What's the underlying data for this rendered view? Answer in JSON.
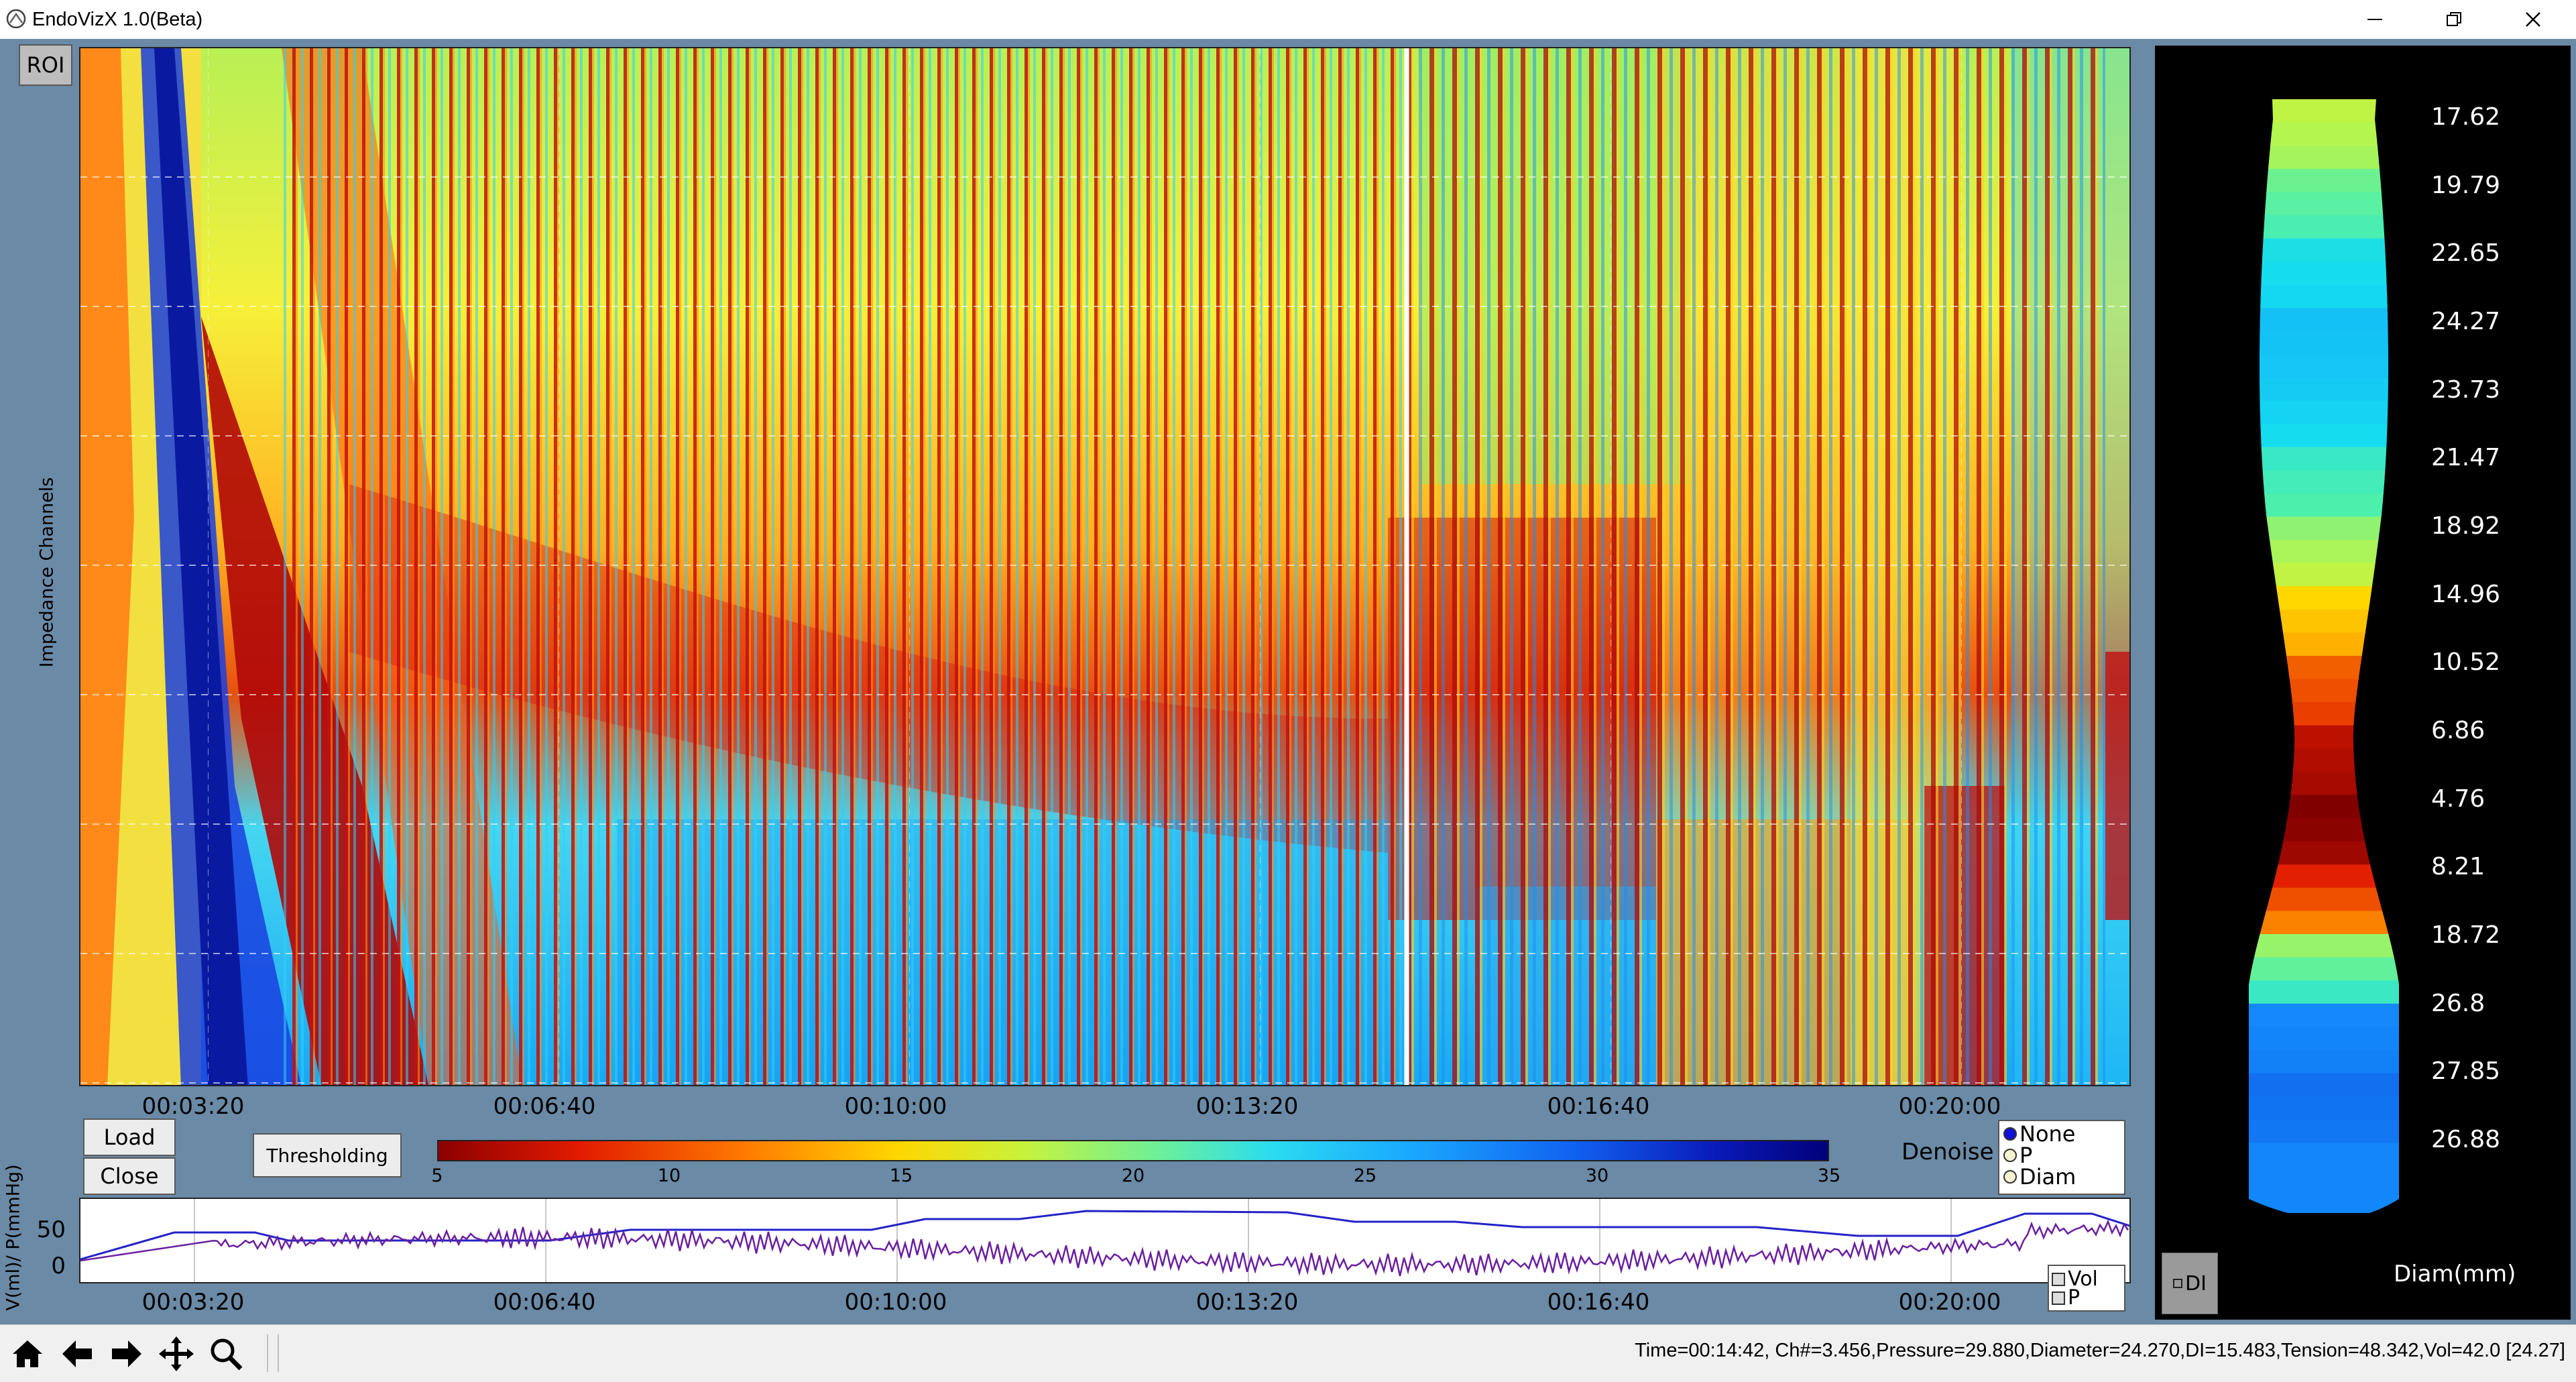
{
  "window": {
    "title": "EndoVizX 1.0(Beta)",
    "icon": "app-logo-icon",
    "controls": [
      "minimize-icon",
      "restore-icon",
      "close-icon"
    ]
  },
  "heatmap": {
    "roi_label": "ROI",
    "ylabel": "Impedance Channels",
    "time_ticks": [
      "00:03:20",
      "00:06:40",
      "00:10:00",
      "00:13:20",
      "00:16:40",
      "00:20:00"
    ],
    "colormap": "jet_r",
    "marker_time": "00:14:42"
  },
  "controls": {
    "load_label": "Load",
    "close_label": "Close",
    "thresholding_label": "Thresholding",
    "colorbar_ticks": [
      "5",
      "10",
      "15",
      "20",
      "25",
      "30",
      "35"
    ],
    "colorbar_range": [
      5,
      35
    ],
    "denoise_label": "Denoise",
    "denoise_options": [
      "None",
      "P",
      "Diam"
    ],
    "denoise_selected": "None"
  },
  "trace": {
    "ylabel": "V(ml)/ P(mmHg)",
    "yticks": [
      "50",
      "0"
    ],
    "time_ticks": [
      "00:03:20",
      "00:06:40",
      "00:10:00",
      "00:13:20",
      "00:16:40",
      "00:20:00"
    ],
    "legend": [
      "Vol",
      "P"
    ],
    "colors": {
      "vol": "#2323c8",
      "p": "#6a1fa0"
    }
  },
  "profile": {
    "diameters": [
      "17.62",
      "19.79",
      "22.65",
      "24.27",
      "23.73",
      "21.47",
      "18.92",
      "14.96",
      "10.52",
      "6.86",
      "4.76",
      "8.21",
      "18.72",
      "26.8",
      "27.85",
      "26.88"
    ],
    "xlabel": "Diam(mm)",
    "di_label": "DI"
  },
  "toolbar": {
    "icons": [
      "home-icon",
      "back-arrow-icon",
      "forward-arrow-icon",
      "pan-icon",
      "zoom-icon"
    ]
  },
  "status": {
    "text": "Time=00:14:42,  Ch#=3.456,Pressure=29.880,Diameter=24.270,DI=15.483,Tension=48.342,Vol=42.0 [24.27]"
  }
}
